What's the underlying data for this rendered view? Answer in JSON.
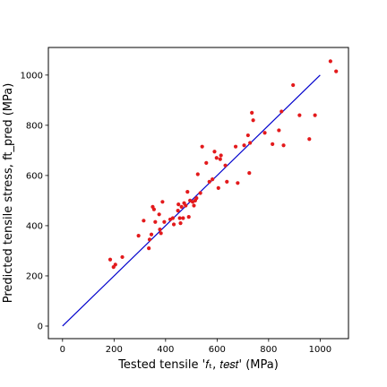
{
  "chart_data": {
    "type": "scatter",
    "title": "",
    "xlabel": "Tested tensile '$f_t,test$' (MPa)",
    "xlabel_display": "Tested tensile '𝑓ₜ, 𝑡𝑒𝑠𝑡' (MPa)",
    "ylabel": "Predicted tensile stress, ft_pred (MPa)",
    "xlim": [
      -55,
      1110
    ],
    "ylim": [
      -50,
      1110
    ],
    "x_ticks": [
      0,
      200,
      400,
      600,
      800,
      1000
    ],
    "y_ticks": [
      0,
      200,
      400,
      600,
      800,
      1000
    ],
    "grid": false,
    "colors": {
      "points": "#e31a1c",
      "reference_line": "#0000cc"
    },
    "series": [
      {
        "type": "scatter",
        "points": [
          [
            185,
            265
          ],
          [
            198,
            235
          ],
          [
            205,
            245
          ],
          [
            232,
            275
          ],
          [
            295,
            360
          ],
          [
            315,
            420
          ],
          [
            335,
            310
          ],
          [
            338,
            345
          ],
          [
            345,
            365
          ],
          [
            350,
            475
          ],
          [
            355,
            465
          ],
          [
            360,
            415
          ],
          [
            375,
            445
          ],
          [
            378,
            385
          ],
          [
            382,
            370
          ],
          [
            388,
            495
          ],
          [
            395,
            415
          ],
          [
            418,
            425
          ],
          [
            428,
            430
          ],
          [
            432,
            405
          ],
          [
            448,
            460
          ],
          [
            450,
            485
          ],
          [
            455,
            430
          ],
          [
            458,
            410
          ],
          [
            462,
            475
          ],
          [
            468,
            430
          ],
          [
            472,
            490
          ],
          [
            478,
            480
          ],
          [
            485,
            535
          ],
          [
            490,
            435
          ],
          [
            495,
            500
          ],
          [
            505,
            495
          ],
          [
            510,
            480
          ],
          [
            515,
            500
          ],
          [
            520,
            510
          ],
          [
            525,
            605
          ],
          [
            535,
            530
          ],
          [
            542,
            715
          ],
          [
            558,
            650
          ],
          [
            570,
            575
          ],
          [
            582,
            585
          ],
          [
            590,
            695
          ],
          [
            598,
            670
          ],
          [
            605,
            550
          ],
          [
            612,
            665
          ],
          [
            615,
            680
          ],
          [
            632,
            640
          ],
          [
            638,
            575
          ],
          [
            672,
            715
          ],
          [
            680,
            570
          ],
          [
            705,
            720
          ],
          [
            720,
            760
          ],
          [
            725,
            610
          ],
          [
            728,
            730
          ],
          [
            735,
            850
          ],
          [
            740,
            820
          ],
          [
            785,
            770
          ],
          [
            815,
            725
          ],
          [
            840,
            780
          ],
          [
            850,
            855
          ],
          [
            858,
            720
          ],
          [
            895,
            960
          ],
          [
            920,
            840
          ],
          [
            958,
            745
          ],
          [
            980,
            840
          ],
          [
            1040,
            1055
          ],
          [
            1062,
            1015
          ]
        ]
      },
      {
        "type": "line",
        "x": [
          0,
          1000
        ],
        "y": [
          0,
          1000
        ]
      }
    ]
  }
}
